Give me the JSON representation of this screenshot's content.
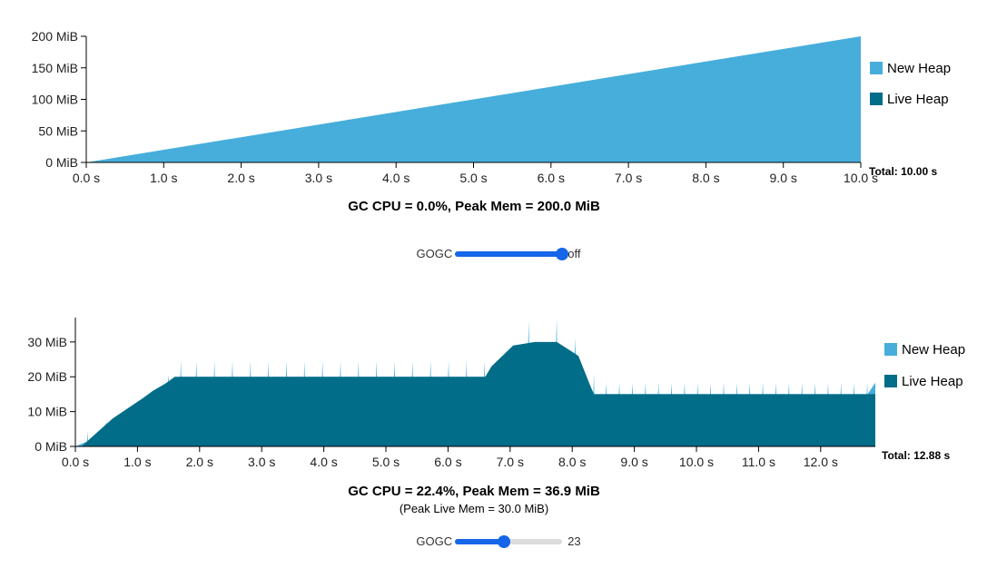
{
  "colors": {
    "new_heap": "#47aedb",
    "live_heap": "#026d88",
    "slider": "#1566e8"
  },
  "legend": {
    "new_heap": "New Heap",
    "live_heap": "Live Heap"
  },
  "chart_data": [
    {
      "type": "area",
      "x_unit": "s",
      "y_unit": "MiB",
      "xlim": [
        0,
        10
      ],
      "ylim": [
        0,
        200
      ],
      "x_ticks": [
        "0.0 s",
        "1.0 s",
        "2.0 s",
        "3.0 s",
        "4.0 s",
        "5.0 s",
        "6.0 s",
        "7.0 s",
        "8.0 s",
        "9.0 s",
        "10.0 s"
      ],
      "y_ticks": [
        "0 MiB",
        "50 MiB",
        "100 MiB",
        "150 MiB",
        "200 MiB"
      ],
      "total_label": "Total: 10.00 s",
      "summary": "GC CPU = 0.0%, Peak Mem = 200.0 MiB",
      "legend_position": "right",
      "series": [
        {
          "name": "New Heap",
          "x": [
            0,
            10
          ],
          "values": [
            0,
            200
          ]
        },
        {
          "name": "Live Heap",
          "x": [
            0,
            10
          ],
          "values": [
            0,
            0
          ]
        }
      ],
      "gogc_label": "GOGC",
      "gogc_value": "off",
      "gogc_slider_fraction": 1.0
    },
    {
      "type": "area",
      "x_unit": "s",
      "y_unit": "MiB",
      "xlim": [
        0,
        12.88
      ],
      "ylim": [
        0,
        37
      ],
      "x_ticks": [
        "0.0 s",
        "1.0 s",
        "2.0 s",
        "3.0 s",
        "4.0 s",
        "5.0 s",
        "6.0 s",
        "7.0 s",
        "8.0 s",
        "9.0 s",
        "10.0 s",
        "11.0 s",
        "12.0 s"
      ],
      "y_ticks": [
        "0 MiB",
        "10 MiB",
        "20 MiB",
        "30 MiB"
      ],
      "total_label": "Total: 12.88 s",
      "summary": "GC CPU = 22.4%, Peak Mem = 36.9 MiB",
      "sub_summary": "(Peak Live Mem = 30.0 MiB)",
      "legend_position": "right",
      "series": [
        {
          "name": "Live Heap",
          "x": [
            0,
            0.1,
            0.35,
            0.6,
            0.85,
            1.1,
            1.25,
            1.45,
            1.6,
            1.75,
            6.6,
            6.7,
            7.05,
            7.4,
            7.75,
            8.1,
            8.3,
            8.35,
            12.88
          ],
          "values": [
            0,
            0,
            4,
            8,
            11,
            14,
            16,
            18,
            20,
            20,
            20,
            23,
            29,
            30,
            30,
            26,
            17,
            15,
            15
          ]
        },
        {
          "name": "New Heap (peaks)",
          "x": [
            0.2,
            0.5,
            0.8,
            1.05,
            1.3,
            1.5,
            1.7,
            7.3,
            7.75,
            8.05,
            8.35
          ],
          "values": [
            4.5,
            7,
            9.5,
            12,
            16,
            20.5,
            24.5,
            36,
            37,
            31,
            21
          ]
        }
      ],
      "gogc_label": "GOGC",
      "gogc_value": "23",
      "gogc_slider_fraction": 0.46
    }
  ]
}
